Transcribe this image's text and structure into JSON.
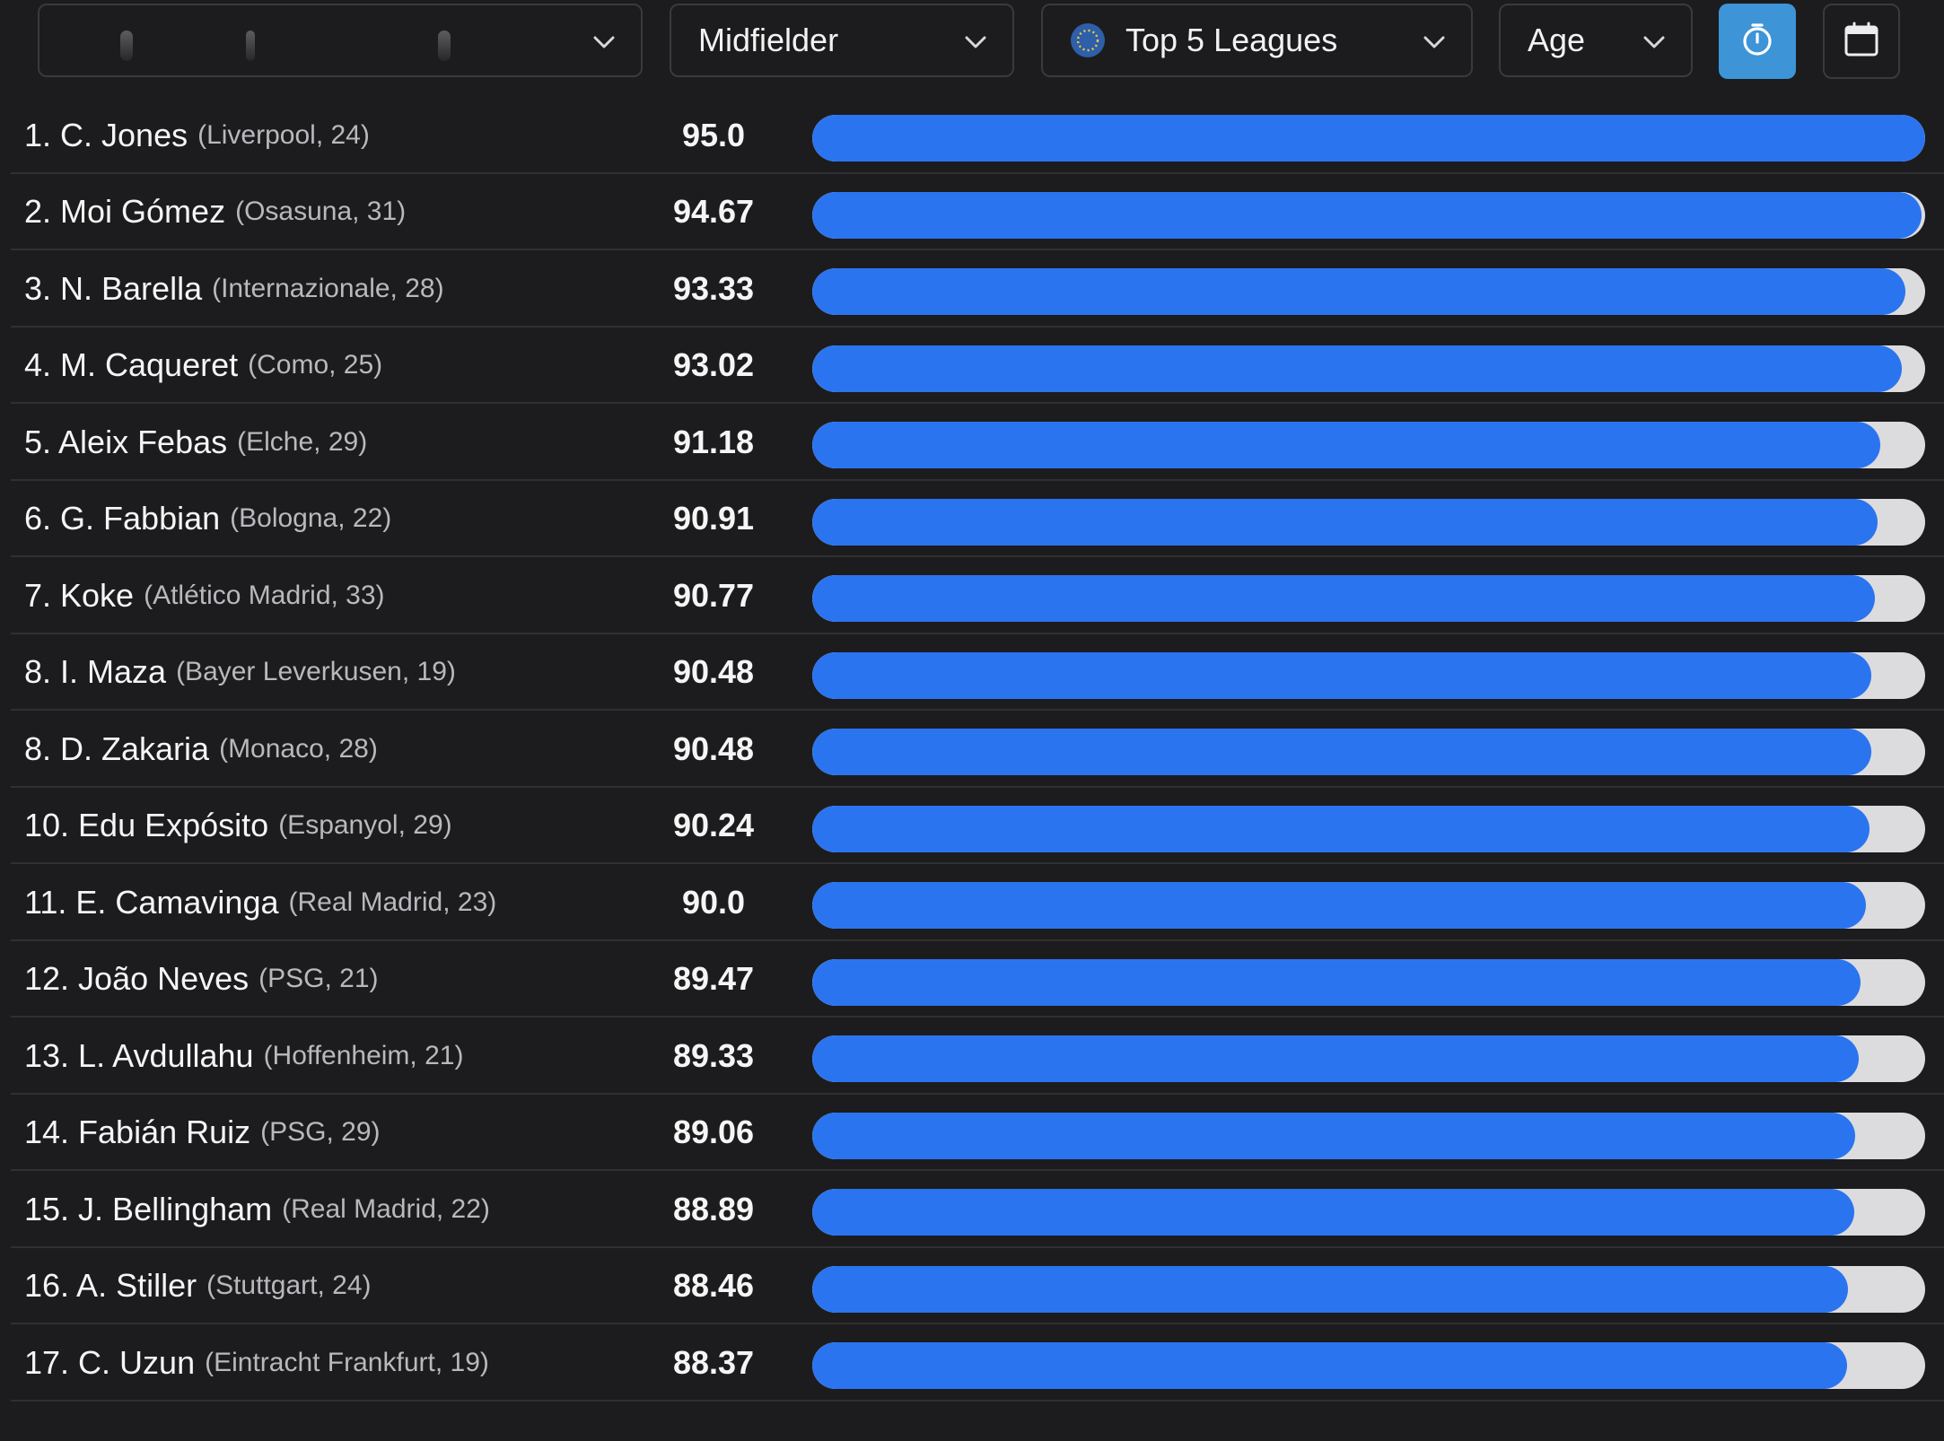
{
  "toolbar": {
    "position_filter": "Midfielder",
    "league_filter": "Top 5 Leagues",
    "sort_filter": "Age"
  },
  "colors": {
    "background": "#1c1c1e",
    "bar_fill": "#2a74f0",
    "bar_track": "#dcdcde",
    "timer_button": "#3d94d6"
  },
  "icons": [
    "chevron-down-icon",
    "globe-icon",
    "timer-icon",
    "calendar-icon"
  ],
  "players": [
    {
      "name": "1. C. Jones",
      "meta": "(Liverpool, 24)",
      "score": "95.0",
      "fill": 1.0
    },
    {
      "name": "2. Moi Gómez",
      "meta": "(Osasuna, 31)",
      "score": "94.67",
      "fill": 0.997
    },
    {
      "name": "3. N. Barella",
      "meta": "(Internazionale, 28)",
      "score": "93.33",
      "fill": 0.982
    },
    {
      "name": "4. M. Caqueret",
      "meta": "(Como, 25)",
      "score": "93.02",
      "fill": 0.979
    },
    {
      "name": "5. Aleix Febas",
      "meta": "(Elche, 29)",
      "score": "91.18",
      "fill": 0.96
    },
    {
      "name": "6. G. Fabbian",
      "meta": "(Bologna, 22)",
      "score": "90.91",
      "fill": 0.957
    },
    {
      "name": "7. Koke",
      "meta": "(Atlético Madrid, 33)",
      "score": "90.77",
      "fill": 0.955
    },
    {
      "name": "8. I. Maza",
      "meta": "(Bayer Leverkusen, 19)",
      "score": "90.48",
      "fill": 0.952
    },
    {
      "name": "8. D. Zakaria",
      "meta": "(Monaco, 28)",
      "score": "90.48",
      "fill": 0.952
    },
    {
      "name": "10. Edu Expósito",
      "meta": "(Espanyol, 29)",
      "score": "90.24",
      "fill": 0.95
    },
    {
      "name": "11. E. Camavinga",
      "meta": "(Real Madrid, 23)",
      "score": "90.0",
      "fill": 0.947
    },
    {
      "name": "12. João Neves",
      "meta": "(PSG, 21)",
      "score": "89.47",
      "fill": 0.942
    },
    {
      "name": "13. L. Avdullahu",
      "meta": "(Hoffenheim, 21)",
      "score": "89.33",
      "fill": 0.94
    },
    {
      "name": "14. Fabián Ruiz",
      "meta": "(PSG, 29)",
      "score": "89.06",
      "fill": 0.937
    },
    {
      "name": "15. J. Bellingham",
      "meta": "(Real Madrid, 22)",
      "score": "88.89",
      "fill": 0.936
    },
    {
      "name": "16. A. Stiller",
      "meta": "(Stuttgart, 24)",
      "score": "88.46",
      "fill": 0.931
    },
    {
      "name": "17. C. Uzun",
      "meta": "(Eintracht Frankfurt, 19)",
      "score": "88.37",
      "fill": 0.93
    }
  ]
}
